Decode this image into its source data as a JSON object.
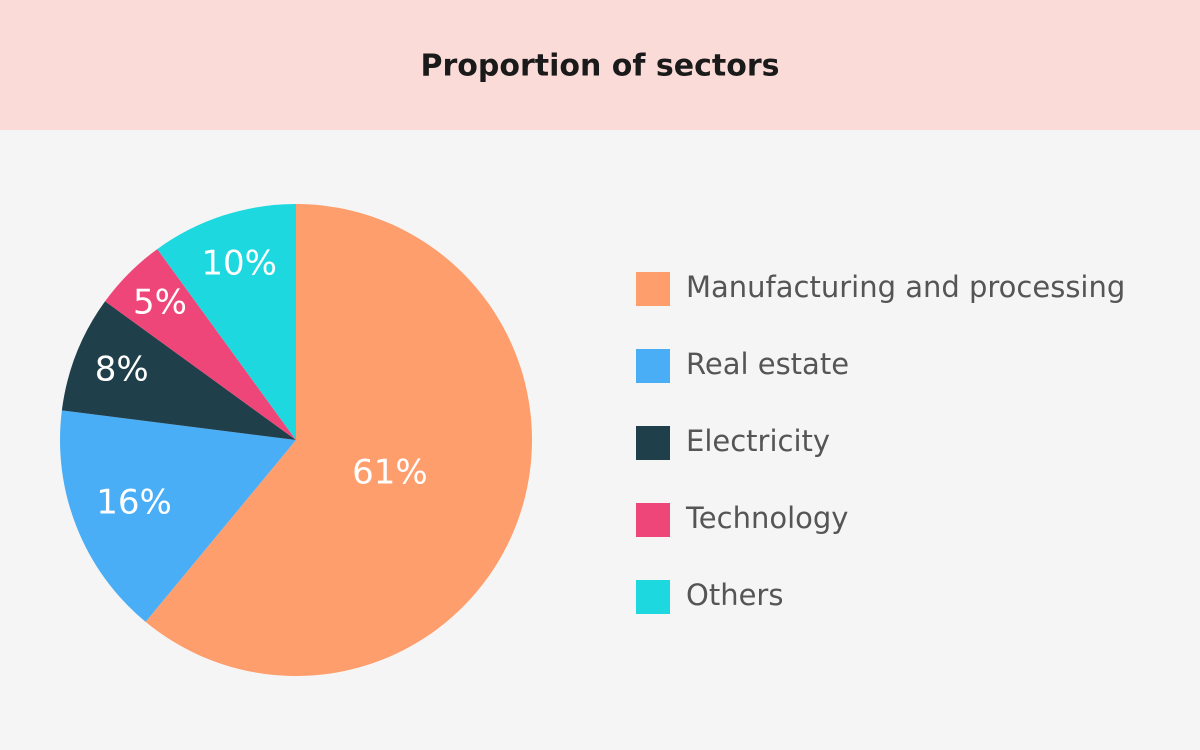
{
  "chart_data": {
    "type": "pie",
    "title": "Proportion of sectors",
    "categories": [
      "Manufacturing and processing",
      "Real estate",
      "Electricity",
      "Technology",
      "Others"
    ],
    "values": [
      61,
      16,
      8,
      5,
      10
    ],
    "value_labels": [
      "61%",
      "16%",
      "8%",
      "5%",
      "10%"
    ],
    "colors": [
      "#ff9e6d",
      "#4aaef7",
      "#1f3f4a",
      "#ee4678",
      "#1ed8e0"
    ],
    "legend": "right"
  }
}
